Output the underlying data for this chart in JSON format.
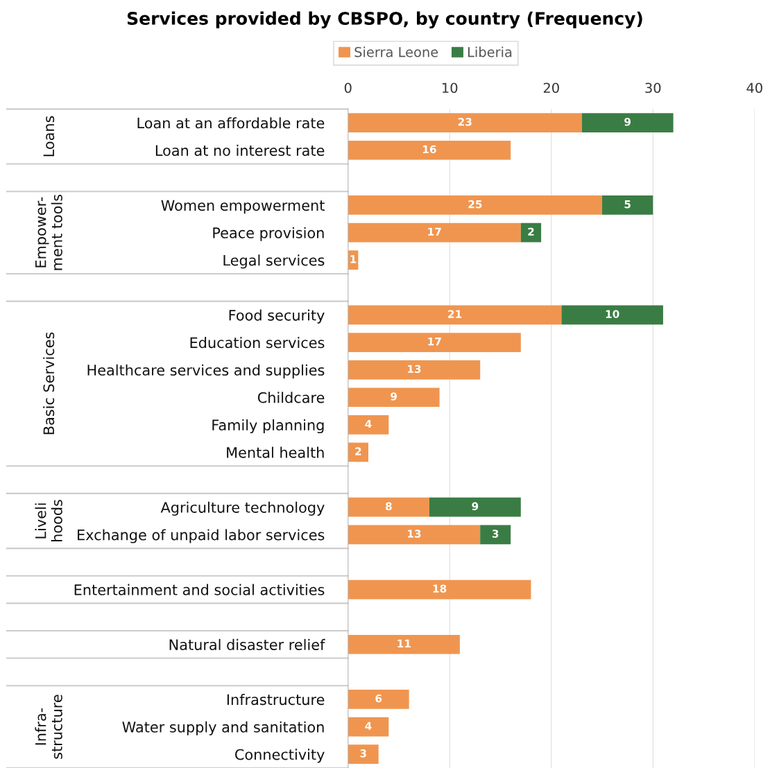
{
  "chart_data": {
    "type": "bar",
    "orientation": "horizontal",
    "stacked": true,
    "title": "Services provided by CBSPO, by country (Frequency)",
    "categories": [
      "Loan at an affordable rate",
      "Loan at no interest rate",
      null,
      "Women empowerment",
      "Peace provision",
      "Legal services",
      null,
      "Food security",
      "Education services",
      "Healthcare services and supplies",
      "Childcare",
      "Family planning",
      "Mental health",
      null,
      "Agriculture technology",
      "Exchange of unpaid labor services",
      null,
      "Entertainment and social activities",
      null,
      "Natural disaster relief",
      null,
      "Infrastructure",
      "Water supply and sanitation",
      "Connectivity"
    ],
    "series": [
      {
        "name": "Sierra Leone",
        "color": "#f0954f",
        "values": [
          23,
          16,
          null,
          25,
          17,
          1,
          null,
          21,
          17,
          13,
          9,
          4,
          2,
          null,
          8,
          13,
          null,
          18,
          null,
          11,
          null,
          6,
          4,
          3
        ]
      },
      {
        "name": "Liberia",
        "color": "#3a7d44",
        "values": [
          9,
          null,
          null,
          5,
          2,
          null,
          null,
          10,
          null,
          null,
          null,
          null,
          null,
          null,
          9,
          3,
          null,
          null,
          null,
          null,
          null,
          null,
          null,
          null
        ]
      }
    ],
    "xlim": [
      0,
      40
    ],
    "xticks": [
      0,
      10,
      20,
      30,
      40
    ],
    "grid": "x",
    "legend": "top",
    "data_labels": true,
    "annotations": [
      "Loans",
      "Empower-\nment tools",
      "Basic Services",
      "Liveli\nhoods",
      "Infra-\nstructure"
    ]
  }
}
